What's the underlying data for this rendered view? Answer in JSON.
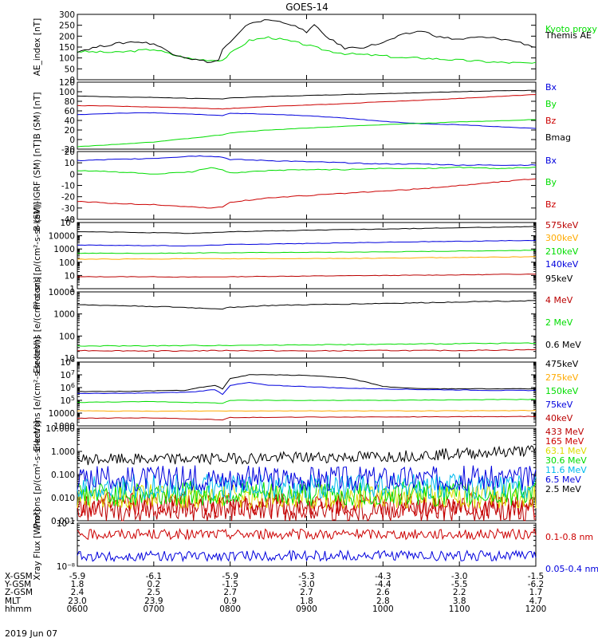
{
  "figure": {
    "title": "GOES-14",
    "date_label": "2019 Jun 07"
  },
  "colors": {
    "black": "#000000",
    "red": "#cc0000",
    "green": "#00dd00",
    "blue": "#0000dd",
    "orange": "#ffaa00",
    "yellow": "#dddd00",
    "cyan": "#00bbee",
    "darkred": "#bb0000",
    "purple": "#aa00aa"
  },
  "chart_data": [
    {
      "type": "line",
      "ylabel": "AE_index [nT]",
      "ylim": [
        0,
        300
      ],
      "yscale": "linear",
      "yticks": [
        0,
        50,
        100,
        150,
        200,
        250,
        300
      ],
      "legend_placement": "right",
      "series": [
        {
          "name": "Kyoto proxy AE",
          "color_key": "green",
          "x": [
            6.0,
            6.5,
            7.0,
            7.25,
            7.5,
            7.75,
            7.9,
            8.0,
            8.25,
            8.5,
            8.75,
            9.0,
            9.25,
            9.5,
            9.75,
            10.0,
            10.25,
            10.5,
            10.75,
            11.0,
            11.5,
            12.0
          ],
          "y": [
            130,
            125,
            140,
            115,
            95,
            90,
            90,
            120,
            180,
            195,
            180,
            160,
            135,
            120,
            115,
            110,
            100,
            100,
            95,
            90,
            80,
            75
          ]
        },
        {
          "name": "Themis AE",
          "color_key": "black",
          "x": [
            6.0,
            6.25,
            6.5,
            6.75,
            7.0,
            7.25,
            7.5,
            7.75,
            7.85,
            7.9,
            8.0,
            8.25,
            8.5,
            8.75,
            9.0,
            9.1,
            9.25,
            9.5,
            9.75,
            10.0,
            10.25,
            10.5,
            10.75,
            11.0,
            11.25,
            11.5,
            11.75,
            12.0
          ],
          "y": [
            130,
            150,
            165,
            175,
            165,
            120,
            95,
            80,
            90,
            140,
            170,
            260,
            275,
            260,
            220,
            250,
            200,
            145,
            150,
            170,
            205,
            225,
            195,
            185,
            195,
            190,
            175,
            150
          ]
        }
      ]
    },
    {
      "type": "line",
      "ylabel": "B (SM) [nT]",
      "ylim": [
        -20,
        120
      ],
      "yscale": "linear",
      "yticks": [
        -20,
        0,
        20,
        40,
        60,
        80,
        100,
        120
      ],
      "legend_placement": "right",
      "series": [
        {
          "name": "Bx",
          "color_key": "blue",
          "x": [
            6.0,
            6.5,
            7.0,
            7.5,
            7.9,
            8.0,
            8.5,
            9.0,
            9.5,
            10.0,
            10.5,
            11.0,
            11.5,
            12.0
          ],
          "y": [
            52,
            55,
            56,
            53,
            50,
            55,
            53,
            50,
            45,
            38,
            33,
            31,
            27,
            23
          ]
        },
        {
          "name": "By",
          "color_key": "green",
          "x": [
            6.0,
            6.5,
            7.0,
            7.5,
            7.9,
            8.0,
            8.5,
            9.0,
            9.5,
            10.0,
            10.5,
            11.0,
            11.5,
            12.0
          ],
          "y": [
            -15,
            -10,
            -5,
            3,
            10,
            14,
            20,
            24,
            28,
            31,
            34,
            37,
            39,
            42
          ]
        },
        {
          "name": "Bz",
          "color_key": "red",
          "x": [
            6.0,
            6.5,
            7.0,
            7.5,
            7.9,
            8.0,
            8.5,
            9.0,
            9.5,
            10.0,
            10.5,
            11.0,
            11.5,
            12.0
          ],
          "y": [
            71,
            70,
            68,
            66,
            64,
            65,
            69,
            72,
            75,
            79,
            82,
            86,
            90,
            94
          ]
        },
        {
          "name": "Bmag",
          "color_key": "black",
          "x": [
            6.0,
            6.5,
            7.0,
            7.5,
            7.9,
            8.0,
            8.5,
            9.0,
            9.5,
            10.0,
            10.5,
            11.0,
            11.5,
            12.0
          ],
          "y": [
            91,
            89,
            88,
            86,
            85,
            87,
            90,
            92,
            94,
            96,
            98,
            100,
            102,
            103
          ]
        }
      ]
    },
    {
      "type": "line",
      "ylabel": "B (SM)-IGRF (SM) [nT]",
      "ylim": [
        -40,
        20
      ],
      "yscale": "linear",
      "yticks": [
        -40,
        -30,
        -20,
        -10,
        0,
        10,
        20
      ],
      "legend_placement": "right",
      "series": [
        {
          "name": "Bx",
          "color_key": "blue",
          "x": [
            6.0,
            6.5,
            7.0,
            7.5,
            7.75,
            7.9,
            8.0,
            8.5,
            9.0,
            9.5,
            10.0,
            10.5,
            11.0,
            11.5,
            12.0
          ],
          "y": [
            12,
            13,
            14,
            16,
            16,
            15,
            13,
            12,
            11,
            10,
            9,
            9,
            8,
            8,
            8
          ]
        },
        {
          "name": "By",
          "color_key": "green",
          "x": [
            6.0,
            6.5,
            7.0,
            7.5,
            7.75,
            7.9,
            8.0,
            8.5,
            9.0,
            9.5,
            10.0,
            10.5,
            11.0,
            11.5,
            12.0
          ],
          "y": [
            3,
            2,
            0,
            2,
            6,
            4,
            1,
            3,
            4,
            4,
            5,
            5,
            6,
            5,
            6
          ]
        },
        {
          "name": "Bz",
          "color_key": "red",
          "x": [
            6.0,
            6.5,
            7.0,
            7.5,
            7.75,
            7.9,
            8.0,
            8.5,
            9.0,
            9.5,
            10.0,
            10.5,
            11.0,
            11.5,
            12.0
          ],
          "y": [
            -24,
            -26,
            -27,
            -29,
            -30,
            -29,
            -25,
            -21,
            -19,
            -17,
            -15,
            -13,
            -10,
            -7,
            -4
          ]
        }
      ]
    },
    {
      "type": "line",
      "ylabel": "Protons [p/(cm²-s-sr-keV)]",
      "ylim": [
        1,
        100000
      ],
      "yscale": "log",
      "yticks": [
        1,
        10,
        100,
        1000,
        10000,
        100000
      ],
      "legend_placement": "right",
      "series": [
        {
          "name": "575keV",
          "color_key": "darkred",
          "x": [
            6.0,
            7.0,
            7.5,
            8.0,
            9.0,
            10.0,
            11.0,
            12.0
          ],
          "y": [
            8,
            8,
            7.5,
            8,
            9,
            10,
            11,
            13
          ]
        },
        {
          "name": "300keV",
          "color_key": "orange",
          "x": [
            6.0,
            7.0,
            7.5,
            8.0,
            9.0,
            10.0,
            11.0,
            12.0
          ],
          "y": [
            170,
            175,
            185,
            180,
            190,
            200,
            230,
            260
          ]
        },
        {
          "name": "210keV",
          "color_key": "green",
          "x": [
            6.0,
            7.0,
            7.5,
            8.0,
            9.0,
            10.0,
            11.0,
            12.0
          ],
          "y": [
            480,
            470,
            500,
            520,
            560,
            600,
            700,
            800
          ]
        },
        {
          "name": "140keV",
          "color_key": "blue",
          "x": [
            6.0,
            7.0,
            7.5,
            8.0,
            9.0,
            10.0,
            11.0,
            12.0
          ],
          "y": [
            2000,
            1800,
            1700,
            2200,
            2600,
            3200,
            3800,
            4500
          ]
        },
        {
          "name": "95keV",
          "color_key": "black",
          "x": [
            6.0,
            7.0,
            7.5,
            8.0,
            9.0,
            10.0,
            11.0,
            12.0
          ],
          "y": [
            20000,
            17000,
            15000,
            20000,
            26000,
            32000,
            40000,
            50000
          ]
        }
      ]
    },
    {
      "type": "line",
      "ylabel": "Electrons [e/(cm²-s-sr)]",
      "ylim": [
        10,
        10000
      ],
      "yscale": "log",
      "yticks": [
        10,
        100,
        1000,
        10000
      ],
      "legend_placement": "right",
      "series": [
        {
          "name": "4 MeV",
          "color_key": "darkred",
          "x": [
            6.0,
            7.0,
            8.0,
            9.0,
            10.0,
            11.0,
            12.0
          ],
          "y": [
            22,
            21,
            22,
            21,
            22,
            22,
            24
          ]
        },
        {
          "name": "2 MeV",
          "color_key": "green",
          "x": [
            6.0,
            7.0,
            8.0,
            9.0,
            10.0,
            11.0,
            12.0
          ],
          "y": [
            35,
            36,
            38,
            40,
            42,
            45,
            48
          ]
        },
        {
          "name": "0.6 MeV",
          "color_key": "black",
          "x": [
            6.0,
            6.5,
            7.0,
            7.5,
            7.9,
            8.0,
            8.5,
            9.0,
            9.5,
            10.0,
            10.5,
            11.0,
            11.5,
            12.0
          ],
          "y": [
            2600,
            2400,
            2200,
            1900,
            1700,
            2000,
            2400,
            2600,
            2800,
            3000,
            3200,
            3500,
            3800,
            4000
          ]
        }
      ]
    },
    {
      "type": "line",
      "ylabel": "Electrons [e/(cm²-s-sr-keV)]",
      "ylim": [
        1000,
        100000000
      ],
      "yscale": "log",
      "yticks": [
        1000,
        10000,
        100000,
        1000000,
        10000000,
        100000000
      ],
      "legend_placement": "right",
      "series": [
        {
          "name": "475keV",
          "color_key": "black",
          "x": [
            6.0,
            6.5,
            7.0,
            7.4,
            7.6,
            7.8,
            7.9,
            8.0,
            8.25,
            8.5,
            9.0,
            9.5,
            9.75,
            10.0,
            10.5,
            11.0,
            11.5,
            12.0
          ],
          "y": [
            500000,
            500000,
            550000,
            600000,
            1000000,
            1500000,
            800000,
            5000000,
            10000000,
            10000000,
            9000000,
            6000000,
            3000000,
            1200000,
            800000,
            800000,
            800000,
            800000
          ]
        },
        {
          "name": "275keV",
          "color_key": "orange",
          "x": [
            6.0,
            7.0,
            8.0,
            9.0,
            10.0,
            11.0,
            12.0
          ],
          "y": [
            15000,
            14000,
            15000,
            15000,
            15000,
            15000,
            16000
          ]
        },
        {
          "name": "150keV",
          "color_key": "green",
          "x": [
            6.0,
            7.0,
            7.9,
            8.0,
            9.0,
            10.0,
            11.0,
            12.0
          ],
          "y": [
            70000,
            80000,
            60000,
            100000,
            100000,
            100000,
            110000,
            120000
          ]
        },
        {
          "name": "75keV",
          "color_key": "blue",
          "x": [
            6.0,
            6.5,
            7.0,
            7.5,
            7.8,
            7.9,
            8.0,
            8.25,
            8.5,
            9.0,
            9.5,
            10.0,
            10.5,
            11.0,
            11.5,
            12.0
          ],
          "y": [
            350000,
            350000,
            380000,
            450000,
            700000,
            300000,
            1500000,
            2500000,
            1500000,
            1200000,
            900000,
            800000,
            700000,
            650000,
            600000,
            600000
          ]
        },
        {
          "name": "40keV",
          "color_key": "darkred",
          "x": [
            6.0,
            7.0,
            7.9,
            8.0,
            9.0,
            10.0,
            11.0,
            12.0
          ],
          "y": [
            4000,
            4200,
            3000,
            4500,
            4800,
            5000,
            5200,
            5500
          ]
        }
      ]
    },
    {
      "type": "line",
      "ylabel": "Protons [p/(cm²-s-sr-keV)]",
      "ylim": [
        0.001,
        10
      ],
      "yscale": "log",
      "yticks": [
        0.001,
        0.01,
        0.1,
        1,
        10
      ],
      "ytick_labels": [
        "0.001",
        "0.010",
        "0.100",
        "1.000",
        "10.000"
      ],
      "legend_placement": "right",
      "series": [
        {
          "name": "433 MeV",
          "color_key": "darkred",
          "x": [
            6.0,
            9.0,
            12.0
          ],
          "y": [
            0.003,
            0.003,
            0.003
          ]
        },
        {
          "name": "165 MeV",
          "color_key": "red",
          "x": [
            6.0,
            9.0,
            12.0
          ],
          "y": [
            0.005,
            0.005,
            0.005
          ]
        },
        {
          "name": "63.1 MeV",
          "color_key": "yellow",
          "x": [
            6.0,
            9.0,
            12.0
          ],
          "y": [
            0.012,
            0.012,
            0.012
          ]
        },
        {
          "name": "30.6 MeV",
          "color_key": "green",
          "x": [
            6.0,
            9.0,
            12.0
          ],
          "y": [
            0.015,
            0.015,
            0.015
          ]
        },
        {
          "name": "11.6 MeV",
          "color_key": "cyan",
          "x": [
            6.0,
            9.0,
            12.0
          ],
          "y": [
            0.03,
            0.03,
            0.03
          ]
        },
        {
          "name": "6.5 MeV",
          "color_key": "blue",
          "x": [
            6.0,
            9.0,
            12.0
          ],
          "y": [
            0.07,
            0.07,
            0.07
          ]
        },
        {
          "name": "2.5 MeV",
          "color_key": "black",
          "x": [
            6.0,
            7.0,
            8.0,
            9.0,
            10.0,
            11.0,
            12.0
          ],
          "y": [
            0.45,
            0.45,
            0.5,
            0.55,
            0.6,
            0.8,
            1.1
          ]
        }
      ]
    },
    {
      "type": "line",
      "ylabel": "Xray Flux [W/m²]",
      "ylim": [
        1e-08,
        1e-07
      ],
      "yscale": "log",
      "yticks": [
        1e-08,
        1e-07
      ],
      "ytick_labels": [
        "10⁻⁸",
        "10⁻⁷"
      ],
      "legend_placement": "right",
      "series": [
        {
          "name": "0.1-0.8 nm",
          "color_key": "red",
          "x": [
            6.0,
            9.0,
            12.0
          ],
          "y": [
            5.5e-08,
            5.5e-08,
            5.6e-08
          ]
        },
        {
          "name": "0.05-0.4 nm",
          "color_key": "blue",
          "x": [
            6.0,
            9.0,
            12.0
          ],
          "y": [
            1.7e-08,
            1.75e-08,
            1.75e-08
          ]
        }
      ]
    }
  ],
  "x_axis": {
    "xlim": [
      6.0,
      12.0
    ],
    "row_labels": [
      "X-GSM",
      "Y-GSM",
      "Z-GSM",
      "MLT",
      "hhmm"
    ],
    "ticks": [
      {
        "x": 6.0,
        "values": [
          "-5.9",
          "1.8",
          "2.4",
          "23.0",
          "0600"
        ]
      },
      {
        "x": 7.0,
        "values": [
          "-6.1",
          "0.2",
          "2.5",
          "23.9",
          "0700"
        ]
      },
      {
        "x": 8.0,
        "values": [
          "-5.9",
          "-1.5",
          "2.7",
          "0.9",
          "0800"
        ]
      },
      {
        "x": 9.0,
        "values": [
          "-5.3",
          "-3.0",
          "2.7",
          "1.8",
          "0900"
        ]
      },
      {
        "x": 10.0,
        "values": [
          "-4.3",
          "-4.4",
          "2.6",
          "2.8",
          "1000"
        ]
      },
      {
        "x": 11.0,
        "values": [
          "-3.0",
          "-5.5",
          "2.2",
          "3.8",
          "1100"
        ]
      },
      {
        "x": 12.0,
        "values": [
          "-1.5",
          "-6.2",
          "1.7",
          "4.7",
          "1200"
        ]
      }
    ]
  }
}
